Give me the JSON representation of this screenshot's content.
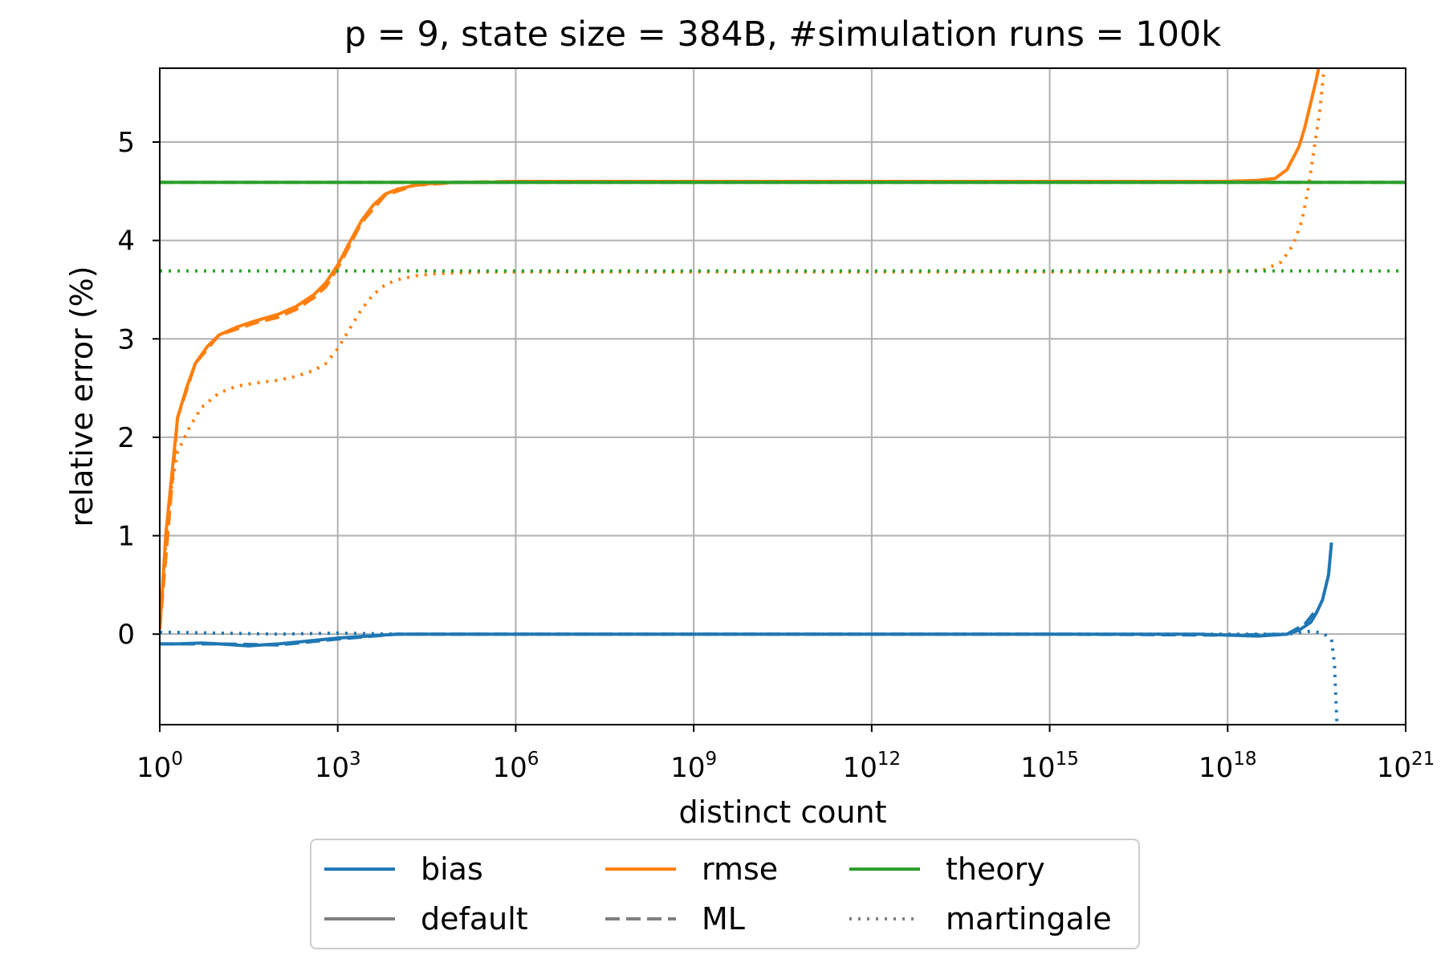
{
  "chart_data": {
    "type": "line",
    "title": "p = 9, state size = 384B, #simulation runs = 100k",
    "xlabel": "distinct count",
    "ylabel": "relative error (%)",
    "xscale": "log10",
    "xlim_exp": [
      0,
      21
    ],
    "ylim": [
      -0.92,
      5.75
    ],
    "grid": true,
    "x_ticks": [
      {
        "base": "10",
        "exp": "0",
        "value": 0
      },
      {
        "base": "10",
        "exp": "3",
        "value": 3
      },
      {
        "base": "10",
        "exp": "6",
        "value": 6
      },
      {
        "base": "10",
        "exp": "9",
        "value": 9
      },
      {
        "base": "10",
        "exp": "12",
        "value": 12
      },
      {
        "base": "10",
        "exp": "15",
        "value": 15
      },
      {
        "base": "10",
        "exp": "18",
        "value": 18
      },
      {
        "base": "10",
        "exp": "21",
        "value": 21
      }
    ],
    "y_ticks": [
      {
        "label": "0",
        "value": 0
      },
      {
        "label": "1",
        "value": 1
      },
      {
        "label": "2",
        "value": 2
      },
      {
        "label": "3",
        "value": 3
      },
      {
        "label": "4",
        "value": 4
      },
      {
        "label": "5",
        "value": 5
      }
    ],
    "colors": {
      "bias": "#1f77b4",
      "rmse": "#ff7f0e",
      "theory": "#2ca02c",
      "neutral": "#7f7f7f"
    },
    "series": [
      {
        "name": "bias default",
        "color": "#1f77b4",
        "style": "solid",
        "x": [
          0,
          0.3,
          0.7,
          1,
          1.5,
          1.7,
          2,
          2.5,
          3,
          3.5,
          4,
          5,
          6,
          8,
          10,
          12,
          14,
          16,
          17.5,
          18.5,
          19,
          19.2,
          19.4,
          19.5,
          19.6,
          19.7,
          19.75
        ],
        "y": [
          -0.1,
          -0.1,
          -0.09,
          -0.1,
          -0.12,
          -0.11,
          -0.1,
          -0.07,
          -0.04,
          -0.02,
          0,
          0,
          0,
          0,
          0,
          0,
          0,
          0,
          0,
          -0.02,
          0,
          0.04,
          0.12,
          0.22,
          0.35,
          0.6,
          0.93
        ]
      },
      {
        "name": "bias ML",
        "color": "#1f77b4",
        "style": "dashed",
        "x": [
          0,
          1,
          2,
          3,
          4,
          6,
          9,
          12,
          15,
          18,
          19,
          19.3,
          19.5
        ],
        "y": [
          -0.1,
          -0.1,
          -0.11,
          -0.05,
          0,
          0,
          0,
          0,
          0,
          -0.01,
          0,
          0.1,
          0.25
        ]
      },
      {
        "name": "bias martingale",
        "color": "#1f77b4",
        "style": "dotted",
        "x": [
          0,
          1,
          2,
          3,
          4,
          6,
          9,
          12,
          15,
          18,
          19,
          19.4,
          19.6,
          19.75,
          19.8,
          19.82,
          19.84
        ],
        "y": [
          0.02,
          0.01,
          0,
          0.01,
          0,
          0,
          0,
          0,
          0,
          0,
          0,
          0.03,
          0.01,
          -0.05,
          -0.3,
          -0.6,
          -0.9
        ]
      },
      {
        "name": "rmse default",
        "color": "#ff7f0e",
        "style": "solid",
        "x": [
          0,
          0.05,
          0.1,
          0.2,
          0.3,
          0.45,
          0.6,
          0.8,
          1,
          1.3,
          1.6,
          2,
          2.3,
          2.6,
          2.8,
          3,
          3.2,
          3.4,
          3.6,
          3.8,
          4,
          4.3,
          4.6,
          5,
          5.5,
          6,
          8,
          10,
          12,
          14,
          16,
          18,
          18.5,
          18.8,
          19,
          19.2,
          19.3,
          19.4,
          19.5,
          19.55,
          19.6
        ],
        "y": [
          0.05,
          0.5,
          1.0,
          1.6,
          2.2,
          2.5,
          2.75,
          2.92,
          3.04,
          3.12,
          3.18,
          3.25,
          3.33,
          3.45,
          3.57,
          3.75,
          3.98,
          4.2,
          4.36,
          4.47,
          4.52,
          4.56,
          4.58,
          4.59,
          4.59,
          4.6,
          4.6,
          4.6,
          4.6,
          4.6,
          4.6,
          4.6,
          4.61,
          4.63,
          4.72,
          4.95,
          5.15,
          5.4,
          5.65,
          5.8,
          5.95
        ]
      },
      {
        "name": "rmse ML",
        "color": "#ff7f0e",
        "style": "dashed",
        "x": [
          0,
          0.3,
          0.6,
          1,
          1.6,
          2,
          2.3,
          2.6,
          2.8,
          3,
          3.4,
          3.8,
          4.3,
          5,
          6
        ],
        "y": [
          0.05,
          2.2,
          2.75,
          3.04,
          3.16,
          3.22,
          3.3,
          3.42,
          3.53,
          3.72,
          4.18,
          4.46,
          4.56,
          4.59,
          4.6
        ]
      },
      {
        "name": "rmse martingale",
        "color": "#ff7f0e",
        "style": "dotted",
        "x": [
          0,
          0.1,
          0.2,
          0.3,
          0.5,
          0.7,
          1,
          1.3,
          1.6,
          2,
          2.3,
          2.6,
          2.8,
          3,
          3.2,
          3.4,
          3.6,
          3.8,
          4,
          4.3,
          4.6,
          5,
          5.5,
          6,
          8,
          10,
          12,
          14,
          16,
          18,
          18.6,
          18.9,
          19.1,
          19.25,
          19.35,
          19.45,
          19.55,
          19.6,
          19.65
        ],
        "y": [
          0.05,
          0.9,
          1.5,
          1.85,
          2.1,
          2.3,
          2.45,
          2.52,
          2.55,
          2.58,
          2.62,
          2.68,
          2.75,
          2.9,
          3.1,
          3.3,
          3.45,
          3.55,
          3.6,
          3.64,
          3.66,
          3.67,
          3.68,
          3.68,
          3.68,
          3.68,
          3.68,
          3.68,
          3.68,
          3.68,
          3.7,
          3.78,
          3.95,
          4.2,
          4.5,
          4.9,
          5.3,
          5.6,
          5.9
        ]
      },
      {
        "name": "theory default",
        "color": "#2ca02c",
        "style": "solid",
        "x": [
          0,
          21
        ],
        "y": [
          4.59,
          4.59
        ]
      },
      {
        "name": "theory ML",
        "color": "#2ca02c",
        "style": "dashed",
        "x": [
          0,
          21
        ],
        "y": [
          4.59,
          4.59
        ]
      },
      {
        "name": "theory martingale",
        "color": "#2ca02c",
        "style": "dotted",
        "x": [
          0,
          21
        ],
        "y": [
          3.69,
          3.69
        ]
      }
    ],
    "legend": {
      "location": "below plot",
      "entries": [
        {
          "label": "bias",
          "color": "#1f77b4",
          "style": "solid"
        },
        {
          "label": "rmse",
          "color": "#ff7f0e",
          "style": "solid"
        },
        {
          "label": "theory",
          "color": "#2ca02c",
          "style": "solid"
        },
        {
          "label": "default",
          "color": "#7f7f7f",
          "style": "solid"
        },
        {
          "label": "ML",
          "color": "#7f7f7f",
          "style": "dashed"
        },
        {
          "label": "martingale",
          "color": "#7f7f7f",
          "style": "dotted"
        }
      ]
    }
  }
}
